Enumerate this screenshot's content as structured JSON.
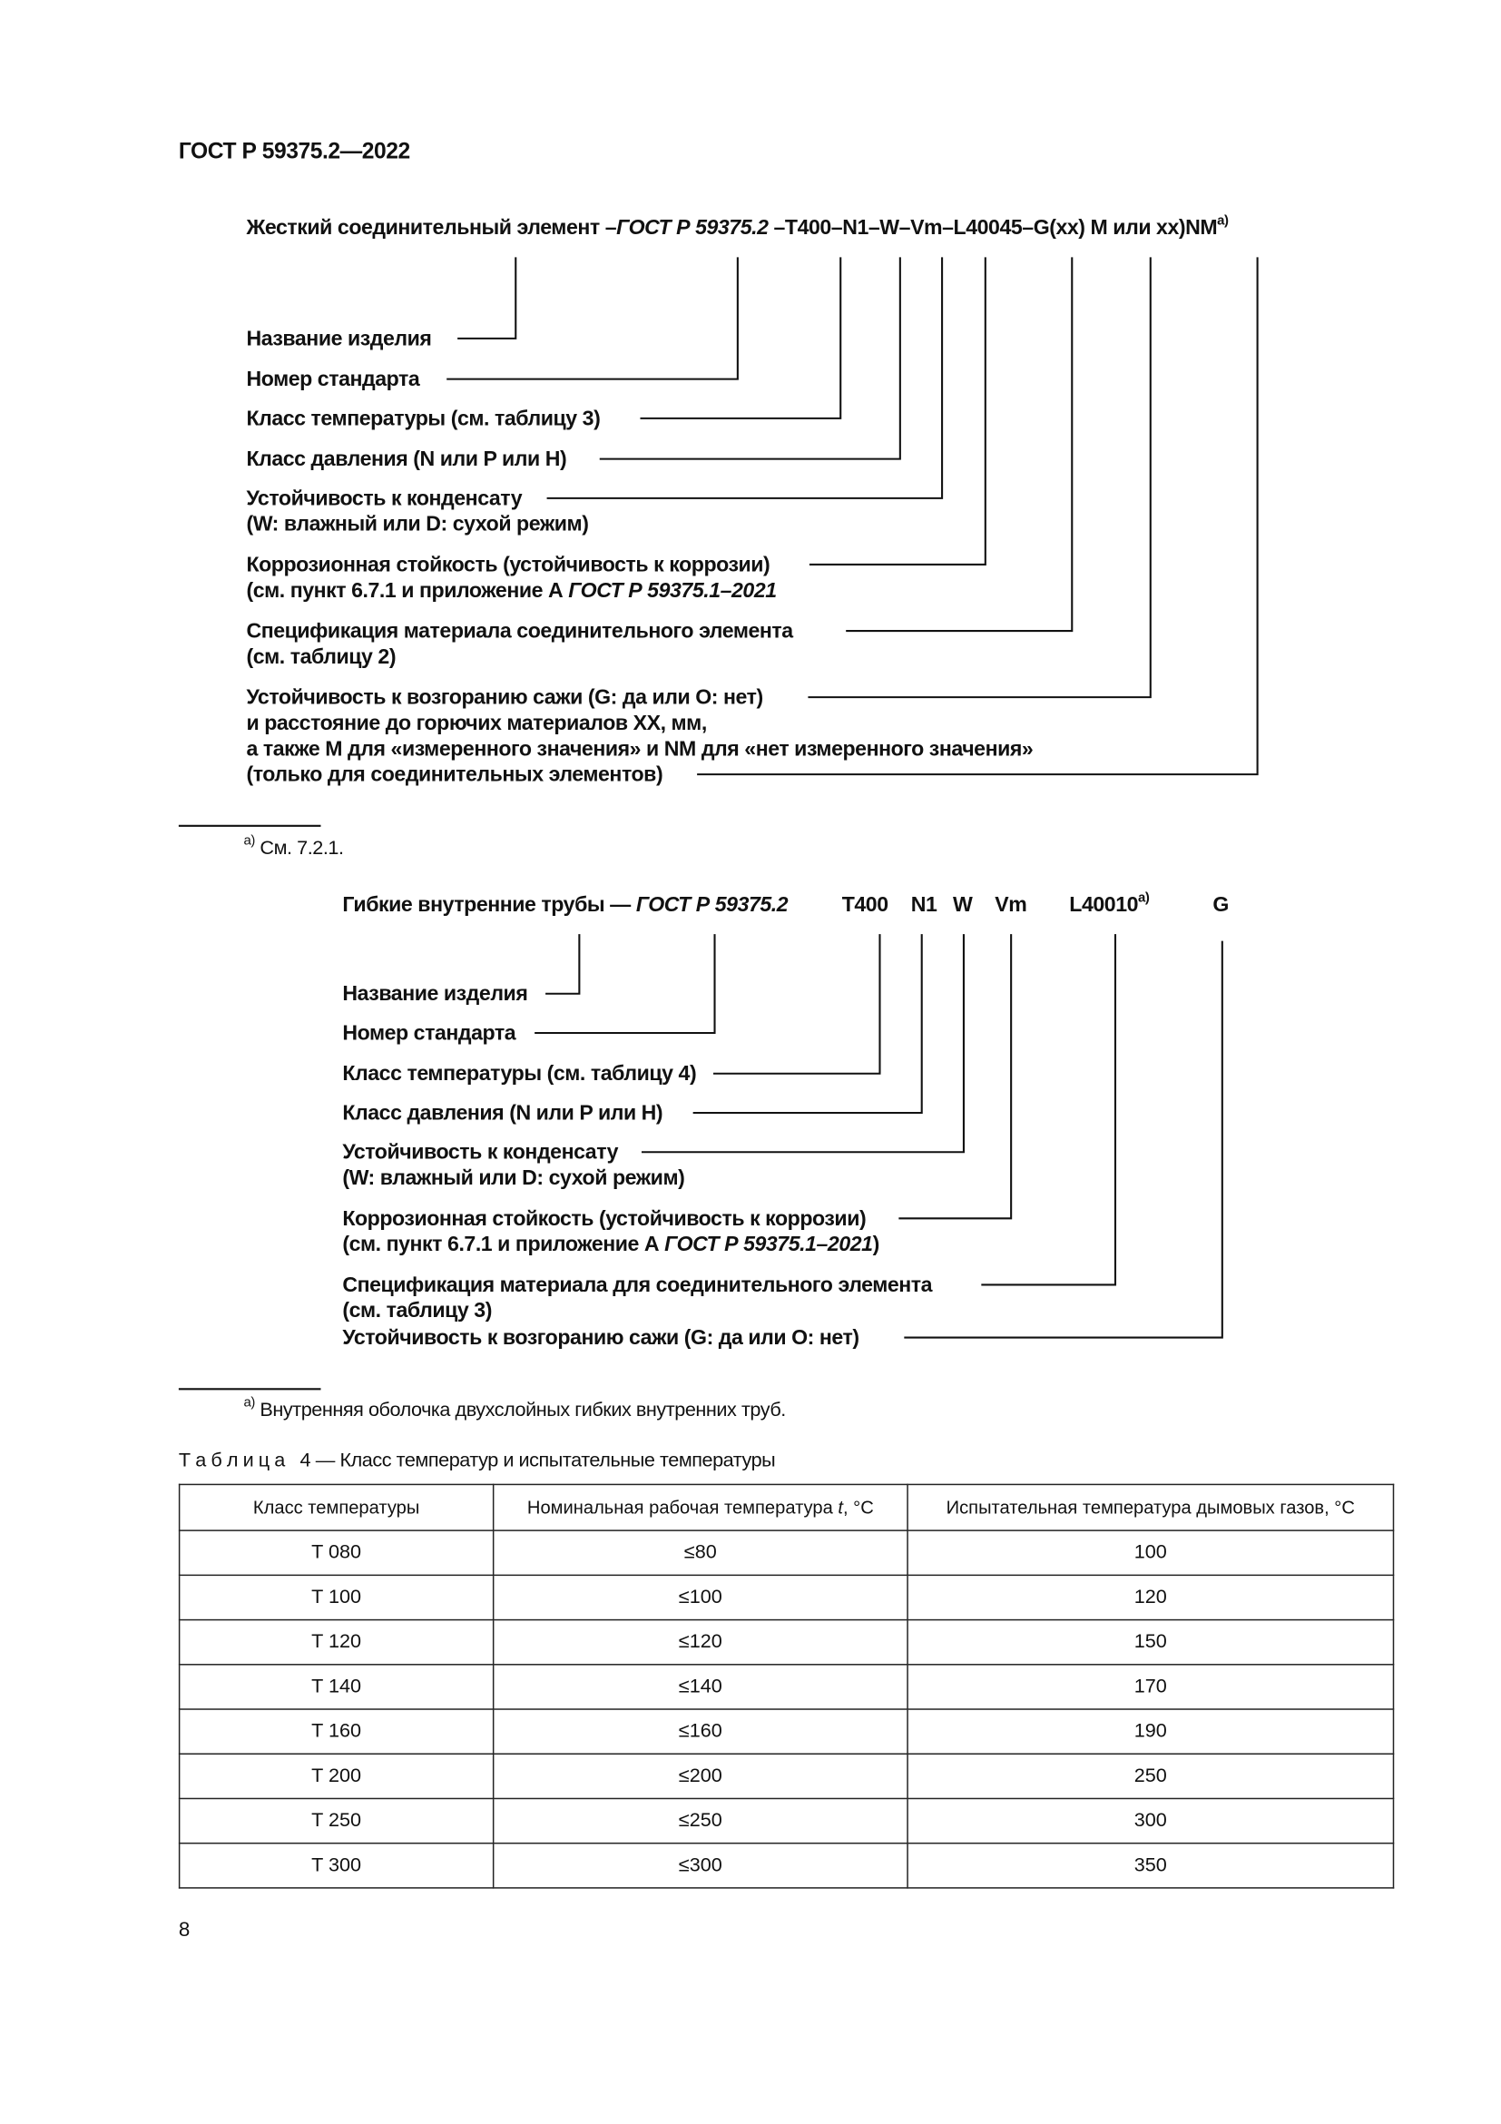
{
  "header": "ГОСТ Р 59375.2—2022",
  "rigid": {
    "code": {
      "prefix": "Жесткий соединительный элемент –",
      "std": "ГОСТ Р 59375.2",
      "rest": " –T400–N1–W–Vm–L40045–G(xx)  M или xx)NM",
      "sup": "а)"
    },
    "labels": [
      "Название изделия",
      "Номер стандарта",
      "Класс температуры (см. таблицу 3)",
      "Класс давления (N или P или H)",
      "Устойчивость к конденсату",
      "(W: влажный или D: сухой режим)",
      "Коррозионная стойкость (устойчивость к коррозии)",
      "(см. пункт 6.7.1 и приложение А ",
      "ГОСТ Р 59375.1–2021",
      "Спецификация материала соединительного элемента",
      "(см. таблицу 2)",
      "Устойчивость к возгоранию сажи (G: да или O: нет)",
      "и расстояние до горючих материалов XX, мм,",
      "а также M для «измеренного значения» и NM для «нет измеренного значения»",
      "(только для соединительных элементов)"
    ],
    "footnote": {
      "mark": "а)",
      "text": "См. 7.2.1."
    }
  },
  "flexible": {
    "code": {
      "prefix": "Гибкие внутренние трубы — ",
      "std": "ГОСТ Р 59375.2",
      "parts": [
        "T400",
        "N1",
        "W",
        "Vm",
        "L40010",
        "G"
      ],
      "sup": "а)"
    },
    "labels": [
      "Название изделия",
      "Номер стандарта",
      "Класс температуры (см. таблицу 4)",
      "Класс давления (N или P или H)",
      "Устойчивость к конденсату",
      "(W: влажный или D: сухой режим)",
      "Коррозионная стойкость (устойчивость к коррозии)",
      "(см. пункт 6.7.1 и приложение А ",
      "ГОСТ Р 59375.1–2021",
      ")",
      "Спецификация материала для соединительного элемента",
      "(см. таблицу 3)",
      "Устойчивость к возгоранию сажи (G: да или O: нет)"
    ],
    "footnote": {
      "mark": "а)",
      "text": "Внутренняя оболочка двухслойных гибких внутренних труб."
    }
  },
  "table": {
    "caption_label": "Т а б л и ц а   4",
    "caption": " — Класс температур и испытательные температуры",
    "headers": [
      "Класс температуры",
      "Номинальная рабочая температура t, °С",
      "Испытательная температура дымовых газов, °С"
    ],
    "rows": [
      [
        "T 080",
        "≤80",
        "100"
      ],
      [
        "T 100",
        "≤100",
        "120"
      ],
      [
        "T 120",
        "≤120",
        "150"
      ],
      [
        "T 140",
        "≤140",
        "170"
      ],
      [
        "T 160",
        "≤160",
        "190"
      ],
      [
        "T 200",
        "≤200",
        "250"
      ],
      [
        "T 250",
        "≤250",
        "300"
      ],
      [
        "T 300",
        "≤300",
        "350"
      ]
    ]
  },
  "page_number": "8"
}
